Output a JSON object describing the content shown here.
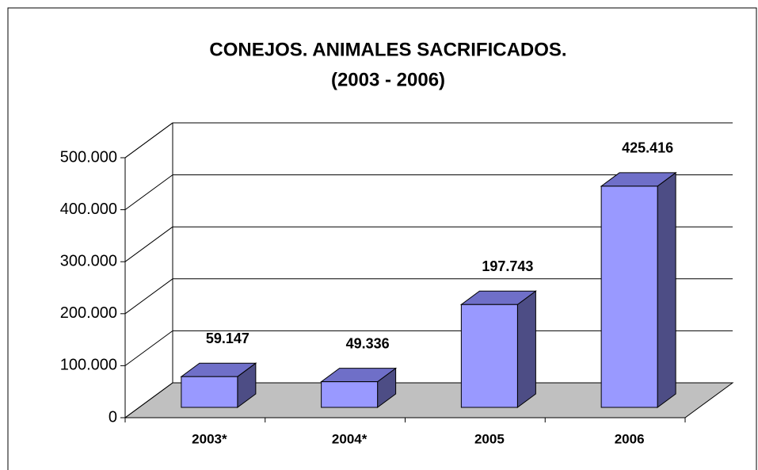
{
  "chart_data": {
    "type": "bar3d",
    "title": [
      "CONEJOS. ANIMALES SACRIFICADOS.",
      "(2003 - 2006)"
    ],
    "categories": [
      "2003*",
      "2004*",
      "2005",
      "2006"
    ],
    "values": [
      59147,
      49336,
      197743,
      425416
    ],
    "value_labels": [
      "59.147",
      "49.336",
      "197.743",
      "425.416"
    ],
    "color": "#9999ff",
    "ylim": [
      0,
      500000
    ],
    "yticks": [
      0,
      {
        "value": 100000,
        "label": "100.000"
      },
      {
        "value": 200000,
        "label": "200.000"
      },
      {
        "value": 300000,
        "label": "300.000"
      },
      {
        "value": 400000,
        "label": "400.000"
      },
      {
        "value": 500000,
        "label": "500.000"
      }
    ],
    "grid": true
  }
}
